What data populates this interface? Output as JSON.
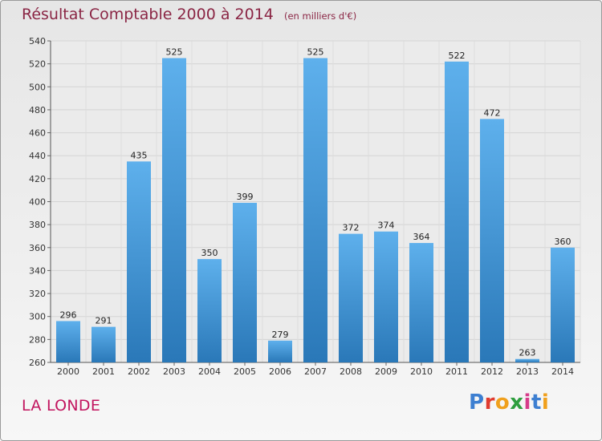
{
  "header": {
    "title": "Résultat Comptable 2000 à 2014",
    "subtitle": "(en milliers d'€)"
  },
  "footer": {
    "place": "LA LONDE",
    "logo_text": "Proxiti",
    "logo_colors": [
      "#3d7fd1",
      "#e03b2f",
      "#f0a01d",
      "#2f9e3f",
      "#d63d8a",
      "#3d7fd1",
      "#f0a01d"
    ]
  },
  "colors": {
    "bar_light": "#5eb0ec",
    "bar_dark": "#2a78b8",
    "title": "#8a2544",
    "place": "#c2155f"
  },
  "chart_data": {
    "type": "bar",
    "title": "Résultat Comptable 2000 à 2014",
    "subtitle": "(en milliers d'€)",
    "categories": [
      "2000",
      "2001",
      "2002",
      "2003",
      "2004",
      "2005",
      "2006",
      "2007",
      "2008",
      "2009",
      "2010",
      "2011",
      "2012",
      "2013",
      "2014"
    ],
    "values": [
      296,
      291,
      435,
      525,
      350,
      399,
      279,
      525,
      372,
      374,
      364,
      522,
      472,
      263,
      360
    ],
    "ylim": [
      260,
      540
    ],
    "yticks": [
      260,
      280,
      300,
      320,
      340,
      360,
      380,
      400,
      420,
      440,
      460,
      480,
      500,
      520,
      540
    ],
    "grid": true,
    "data_labels": true
  }
}
